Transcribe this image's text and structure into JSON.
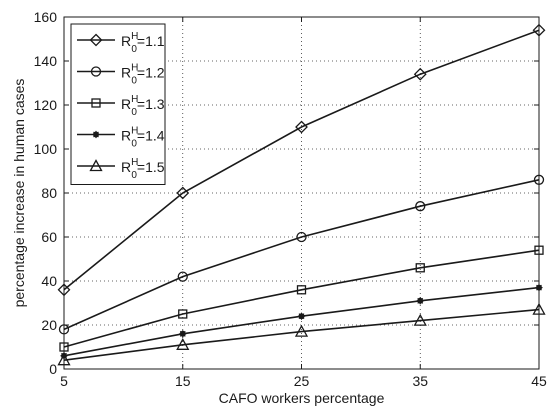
{
  "chart_data": {
    "type": "line",
    "title": "",
    "xlabel": "CAFO workers percentage",
    "ylabel": "percentage increase in human cases",
    "x": [
      5,
      15,
      25,
      35,
      45
    ],
    "xlim": [
      5,
      45
    ],
    "ylim": [
      0,
      160
    ],
    "xticks": [
      "5",
      "15",
      "25",
      "35",
      "45"
    ],
    "yticks": [
      "0",
      "20",
      "40",
      "60",
      "80",
      "100",
      "120",
      "140",
      "160"
    ],
    "grid": true,
    "grid_style": "dotted",
    "legend_position": "top-left",
    "series": [
      {
        "name": "R0H=1.1",
        "label_main": "R",
        "label_sup": "H",
        "label_sub": "0",
        "label_value": "=1.1",
        "marker": "diamond",
        "values": [
          36,
          80,
          110,
          134,
          154
        ]
      },
      {
        "name": "R0H=1.2",
        "label_main": "R",
        "label_sup": "H",
        "label_sub": "0",
        "label_value": "=1.2",
        "marker": "circle",
        "values": [
          18,
          42,
          60,
          74,
          86
        ]
      },
      {
        "name": "R0H=1.3",
        "label_main": "R",
        "label_sup": "H",
        "label_sub": "0",
        "label_value": "=1.3",
        "marker": "square",
        "values": [
          10,
          25,
          36,
          46,
          54
        ]
      },
      {
        "name": "R0H=1.4",
        "label_main": "R",
        "label_sup": "H",
        "label_sub": "0",
        "label_value": "=1.4",
        "marker": "star",
        "values": [
          6,
          16,
          24,
          31,
          37
        ]
      },
      {
        "name": "R0H=1.5",
        "label_main": "R",
        "label_sup": "H",
        "label_sub": "0",
        "label_value": "=1.5",
        "marker": "triangle",
        "values": [
          4,
          11,
          17,
          22,
          27
        ]
      }
    ],
    "line_color": "#1a1a1a"
  }
}
